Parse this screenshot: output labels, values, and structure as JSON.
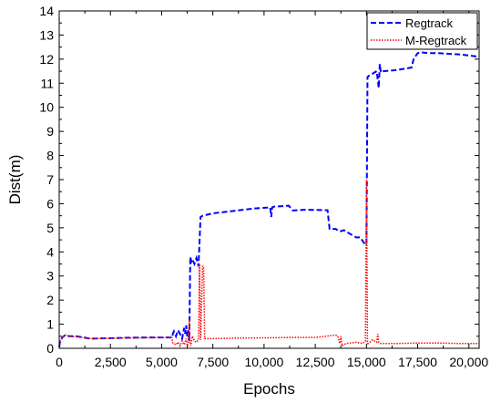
{
  "chart_data": {
    "type": "line",
    "xlabel": "Epochs",
    "ylabel": "Dist(m)",
    "xlim": [
      0,
      20500
    ],
    "ylim": [
      0,
      14
    ],
    "xticks": [
      0,
      2500,
      5000,
      7500,
      10000,
      12500,
      15000,
      17500,
      20000
    ],
    "xtick_labels": [
      "0",
      "2,500",
      "5,000",
      "7,500",
      "10,000",
      "12,500",
      "15,000",
      "17,500",
      "20,000"
    ],
    "yticks": [
      0,
      1,
      2,
      3,
      4,
      5,
      6,
      7,
      8,
      9,
      10,
      11,
      12,
      13,
      14
    ],
    "ytick_labels": [
      "0",
      "1",
      "2",
      "3",
      "4",
      "5",
      "6",
      "7",
      "8",
      "9",
      "10",
      "11",
      "12",
      "13",
      "14"
    ],
    "grid": false,
    "legend_position": "top-right",
    "series": [
      {
        "name": "Regtrack",
        "color": "#0000ff",
        "style": "dashed",
        "x": [
          0,
          50,
          150,
          300,
          500,
          800,
          1200,
          1500,
          2500,
          3500,
          4500,
          5500,
          5550,
          5600,
          5700,
          5800,
          5900,
          6000,
          6100,
          6150,
          6200,
          6250,
          6300,
          6350,
          6400,
          6450,
          6500,
          6600,
          6700,
          6800,
          6900,
          7000,
          7500,
          8500,
          9500,
          10300,
          10350,
          10400,
          10500,
          11000,
          11200,
          11400,
          12000,
          13100,
          13200,
          13500,
          13700,
          13900,
          14200,
          14500,
          14700,
          14900,
          15000,
          15050,
          15100,
          15300,
          15500,
          15600,
          15650,
          15700,
          15800,
          16500,
          17200,
          17300,
          17500,
          17700,
          18000,
          18500,
          19000,
          19500,
          20000,
          20500
        ],
        "y": [
          0.05,
          0.3,
          0.45,
          0.55,
          0.5,
          0.5,
          0.45,
          0.4,
          0.42,
          0.44,
          0.45,
          0.45,
          0.6,
          0.7,
          0.5,
          0.75,
          0.6,
          0.4,
          0.85,
          0.6,
          0.95,
          0.5,
          0.75,
          0.3,
          3.8,
          3.6,
          3.7,
          3.5,
          3.75,
          3.4,
          5.45,
          5.5,
          5.6,
          5.7,
          5.8,
          5.85,
          5.45,
          5.85,
          5.88,
          5.9,
          5.92,
          5.72,
          5.75,
          5.73,
          4.95,
          4.95,
          4.85,
          4.9,
          4.75,
          4.6,
          4.6,
          4.35,
          4.3,
          11.25,
          11.3,
          11.4,
          11.5,
          10.8,
          11.8,
          11.45,
          11.5,
          11.55,
          11.65,
          12.0,
          12.25,
          12.28,
          12.25,
          12.25,
          12.22,
          12.2,
          12.15,
          12.1
        ]
      },
      {
        "name": "M-Regtrack",
        "color": "#ff0000",
        "style": "dotted",
        "x": [
          0,
          50,
          150,
          300,
          500,
          800,
          1200,
          1500,
          2500,
          3500,
          4500,
          5500,
          5550,
          5700,
          5800,
          5900,
          6000,
          6100,
          6200,
          6250,
          6300,
          6350,
          6380,
          6420,
          6500,
          6600,
          6700,
          6800,
          6850,
          6900,
          7000,
          7050,
          7100,
          7500,
          8500,
          9500,
          10500,
          11500,
          12500,
          13500,
          13600,
          13700,
          13750,
          13800,
          14000,
          14500,
          14800,
          14950,
          15000,
          15050,
          15100,
          15300,
          15500,
          15550,
          15600,
          15700,
          16500,
          17500,
          18500,
          19500,
          20500
        ],
        "y": [
          0.05,
          0.3,
          0.45,
          0.55,
          0.5,
          0.48,
          0.45,
          0.4,
          0.42,
          0.43,
          0.44,
          0.45,
          0.2,
          0.15,
          0.25,
          0.1,
          0.3,
          0.15,
          0.4,
          0.1,
          0.2,
          1.2,
          0.3,
          0.1,
          0.5,
          0.3,
          0.25,
          0.35,
          3.5,
          0.35,
          3.4,
          3.4,
          0.4,
          0.4,
          0.42,
          0.43,
          0.44,
          0.45,
          0.45,
          0.55,
          0.5,
          0.2,
          0.5,
          0.1,
          0.2,
          0.25,
          0.2,
          0.3,
          7.0,
          0.2,
          0.2,
          0.35,
          0.25,
          0.6,
          0.25,
          0.2,
          0.2,
          0.22,
          0.22,
          0.2,
          0.2
        ]
      }
    ]
  }
}
